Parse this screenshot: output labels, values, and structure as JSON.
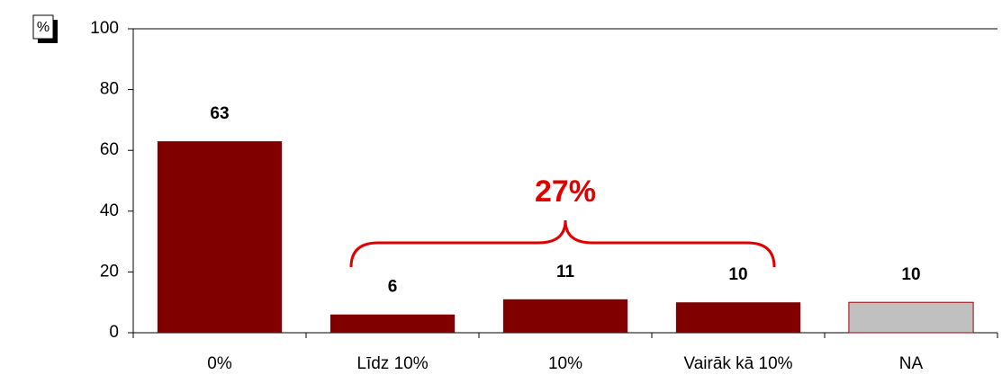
{
  "chart_data": {
    "type": "bar",
    "ylabel": "%",
    "categories": [
      "0%",
      "Līdz 10%",
      "10%",
      "Vairāk kā 10%",
      "NA"
    ],
    "values": [
      63,
      6,
      11,
      10,
      10
    ],
    "colors": [
      "#800000",
      "#800000",
      "#800000",
      "#800000",
      "#c0c0c0"
    ],
    "ylim": [
      0,
      100
    ],
    "yticks": [
      0,
      20,
      40,
      60,
      80,
      100
    ],
    "grid": false,
    "annotation": "27%"
  }
}
